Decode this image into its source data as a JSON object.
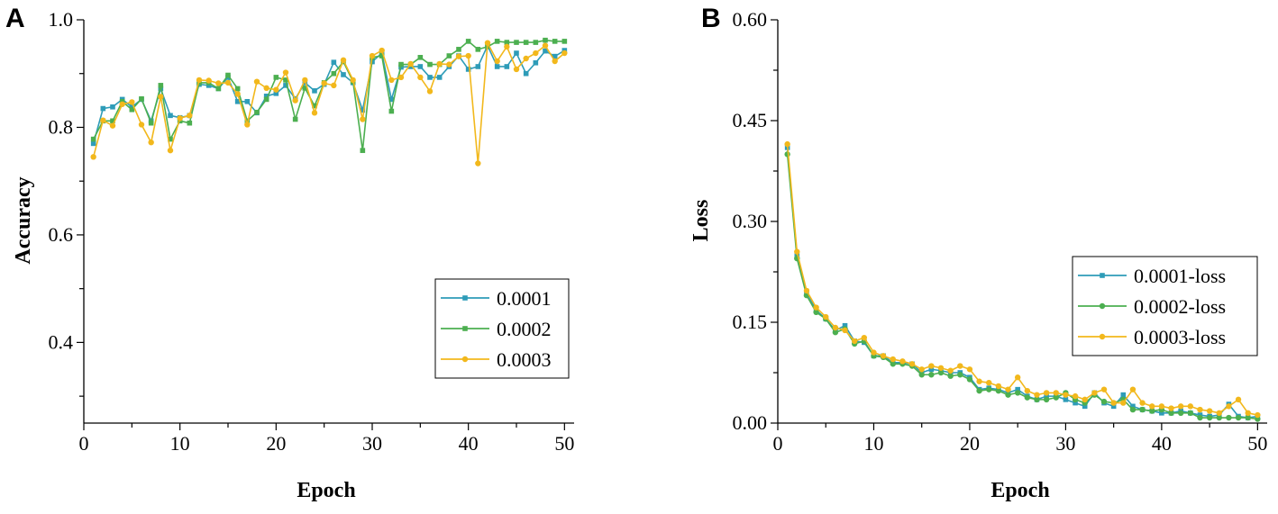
{
  "chart_data": [
    {
      "panel": "A",
      "type": "line",
      "title": "",
      "xlabel": "Epoch",
      "ylabel": "Accuracy",
      "xlim": [
        0,
        51
      ],
      "ylim": [
        0.25,
        1.0
      ],
      "xticks": [
        0,
        10,
        20,
        30,
        40,
        50
      ],
      "yticks": [
        0.4,
        0.6,
        0.8,
        1.0
      ],
      "ytick_labels": [
        "0.4",
        "0.6",
        "0.8",
        "1.0"
      ],
      "grid": false,
      "legend_position": "center-right",
      "x": [
        1,
        2,
        3,
        4,
        5,
        6,
        7,
        8,
        9,
        10,
        11,
        12,
        13,
        14,
        15,
        16,
        17,
        18,
        19,
        20,
        21,
        22,
        23,
        24,
        25,
        26,
        27,
        28,
        29,
        30,
        31,
        32,
        33,
        34,
        35,
        36,
        37,
        38,
        39,
        40,
        41,
        42,
        43,
        44,
        45,
        46,
        47,
        48,
        49,
        50
      ],
      "series": [
        {
          "name": "0.0001",
          "color": "#2E9CB8",
          "marker": "square",
          "values": [
            0.77,
            0.835,
            0.838,
            0.852,
            0.838,
            0.852,
            0.812,
            0.872,
            0.822,
            0.818,
            0.822,
            0.88,
            0.878,
            0.872,
            0.893,
            0.848,
            0.848,
            0.827,
            0.858,
            0.863,
            0.878,
            0.853,
            0.883,
            0.868,
            0.88,
            0.921,
            0.898,
            0.883,
            0.832,
            0.922,
            0.938,
            0.852,
            0.912,
            0.913,
            0.913,
            0.893,
            0.893,
            0.913,
            0.933,
            0.908,
            0.913,
            0.952,
            0.913,
            0.913,
            0.938,
            0.9,
            0.92,
            0.942,
            0.932,
            0.943
          ]
        },
        {
          "name": "0.0002",
          "color": "#4CAF50",
          "marker": "square",
          "values": [
            0.778,
            0.812,
            0.812,
            0.848,
            0.833,
            0.853,
            0.808,
            0.878,
            0.778,
            0.812,
            0.808,
            0.883,
            0.883,
            0.872,
            0.897,
            0.872,
            0.812,
            0.828,
            0.852,
            0.893,
            0.888,
            0.815,
            0.873,
            0.84,
            0.883,
            0.9,
            0.922,
            0.885,
            0.757,
            0.93,
            0.933,
            0.83,
            0.917,
            0.917,
            0.93,
            0.917,
            0.917,
            0.933,
            0.945,
            0.96,
            0.945,
            0.95,
            0.96,
            0.958,
            0.958,
            0.958,
            0.958,
            0.962,
            0.96,
            0.96
          ]
        },
        {
          "name": "0.0003",
          "color": "#F2B81C",
          "marker": "circle",
          "values": [
            0.745,
            0.813,
            0.803,
            0.843,
            0.847,
            0.805,
            0.772,
            0.857,
            0.757,
            0.817,
            0.822,
            0.888,
            0.887,
            0.882,
            0.883,
            0.862,
            0.805,
            0.885,
            0.873,
            0.87,
            0.902,
            0.85,
            0.888,
            0.827,
            0.882,
            0.878,
            0.925,
            0.888,
            0.815,
            0.933,
            0.943,
            0.888,
            0.893,
            0.918,
            0.893,
            0.867,
            0.918,
            0.917,
            0.932,
            0.933,
            0.733,
            0.957,
            0.923,
            0.95,
            0.908,
            0.928,
            0.938,
            0.952,
            0.923,
            0.938
          ]
        }
      ]
    },
    {
      "panel": "B",
      "type": "line",
      "title": "",
      "xlabel": "Epoch",
      "ylabel": "Loss",
      "xlim": [
        0,
        51
      ],
      "ylim": [
        0.0,
        0.6
      ],
      "xticks": [
        0,
        10,
        20,
        30,
        40,
        50
      ],
      "yticks": [
        0.0,
        0.15,
        0.3,
        0.45,
        0.6
      ],
      "ytick_labels": [
        "0.00",
        "0.15",
        "0.30",
        "0.45",
        "0.60"
      ],
      "grid": false,
      "legend_position": "center-right",
      "x": [
        1,
        2,
        3,
        4,
        5,
        6,
        7,
        8,
        9,
        10,
        11,
        12,
        13,
        14,
        15,
        16,
        17,
        18,
        19,
        20,
        21,
        22,
        23,
        24,
        25,
        26,
        27,
        28,
        29,
        30,
        31,
        32,
        33,
        34,
        35,
        36,
        37,
        38,
        39,
        40,
        41,
        42,
        43,
        44,
        45,
        46,
        47,
        48,
        49,
        50
      ],
      "series": [
        {
          "name": "0.0001-loss",
          "color": "#2E9CB8",
          "marker": "square",
          "values": [
            0.41,
            0.25,
            0.195,
            0.168,
            0.155,
            0.138,
            0.145,
            0.122,
            0.12,
            0.1,
            0.1,
            0.09,
            0.09,
            0.088,
            0.075,
            0.08,
            0.078,
            0.075,
            0.075,
            0.068,
            0.05,
            0.052,
            0.05,
            0.045,
            0.05,
            0.04,
            0.035,
            0.04,
            0.04,
            0.035,
            0.03,
            0.025,
            0.045,
            0.03,
            0.025,
            0.042,
            0.025,
            0.02,
            0.018,
            0.015,
            0.015,
            0.018,
            0.015,
            0.012,
            0.01,
            0.012,
            0.028,
            0.01,
            0.008,
            0.01
          ]
        },
        {
          "name": "0.0002-loss",
          "color": "#4CAF50",
          "marker": "circle",
          "values": [
            0.4,
            0.245,
            0.19,
            0.165,
            0.155,
            0.135,
            0.14,
            0.118,
            0.122,
            0.1,
            0.098,
            0.088,
            0.088,
            0.085,
            0.072,
            0.072,
            0.075,
            0.07,
            0.072,
            0.065,
            0.048,
            0.05,
            0.048,
            0.042,
            0.045,
            0.038,
            0.035,
            0.035,
            0.038,
            0.045,
            0.035,
            0.03,
            0.042,
            0.032,
            0.03,
            0.035,
            0.02,
            0.02,
            0.018,
            0.02,
            0.015,
            0.015,
            0.015,
            0.008,
            0.008,
            0.008,
            0.008,
            0.008,
            0.008,
            0.006
          ]
        },
        {
          "name": "0.0003-loss",
          "color": "#F2B81C",
          "marker": "circle",
          "values": [
            0.415,
            0.255,
            0.197,
            0.172,
            0.158,
            0.142,
            0.138,
            0.122,
            0.127,
            0.105,
            0.1,
            0.095,
            0.092,
            0.088,
            0.08,
            0.085,
            0.082,
            0.078,
            0.085,
            0.08,
            0.062,
            0.06,
            0.055,
            0.05,
            0.068,
            0.048,
            0.042,
            0.045,
            0.045,
            0.042,
            0.04,
            0.035,
            0.045,
            0.05,
            0.03,
            0.03,
            0.05,
            0.03,
            0.025,
            0.025,
            0.022,
            0.025,
            0.025,
            0.02,
            0.018,
            0.015,
            0.025,
            0.035,
            0.015,
            0.012
          ]
        }
      ]
    }
  ]
}
